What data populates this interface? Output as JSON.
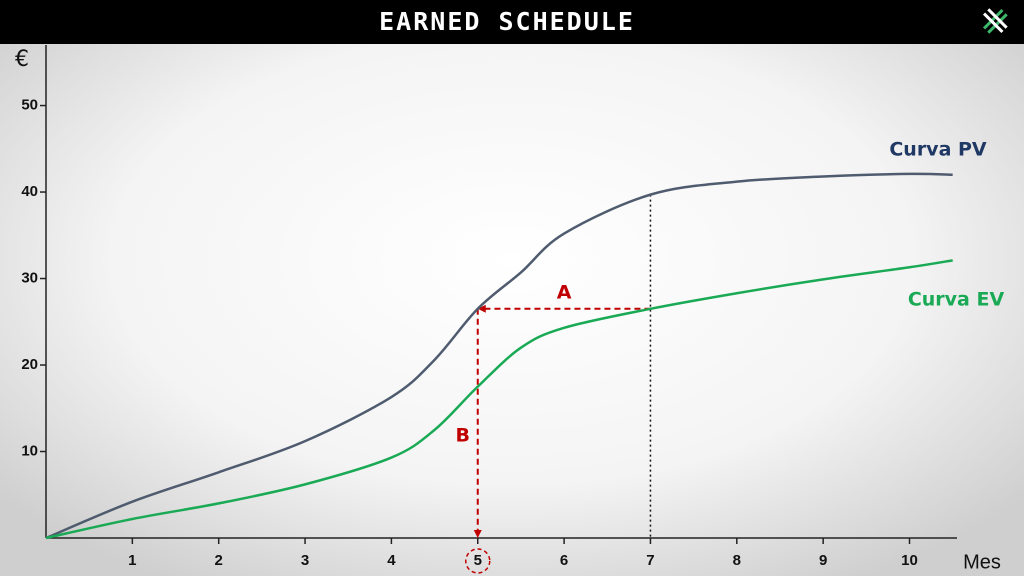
{
  "chart_data": {
    "type": "line",
    "title": "EARNED SCHEDULE",
    "x_label": "Mes",
    "y_label": "€",
    "x": [
      0,
      1,
      2,
      3,
      4,
      4.5,
      5,
      5.5,
      6,
      7,
      8,
      9,
      10,
      10.5
    ],
    "series": [
      {
        "name": "Curva PV",
        "color": "#4f5b6e",
        "label_color": "#1f3864",
        "values": [
          0,
          4.2,
          7.6,
          11.2,
          16.3,
          20.6,
          26.5,
          30.7,
          35.2,
          39.7,
          41.2,
          41.8,
          42.1,
          42.0
        ]
      },
      {
        "name": "Curva EV",
        "color": "#1aaa55",
        "label_color": "#1aaa55",
        "values": [
          0,
          2.2,
          4.0,
          6.2,
          9.3,
          12.5,
          17.5,
          22.0,
          24.3,
          26.5,
          28.3,
          29.9,
          31.3,
          32.1
        ]
      }
    ],
    "annotations": [
      "A",
      "B"
    ],
    "annotation_color": "#c00000",
    "xlim": [
      0,
      10.55
    ],
    "ylim": [
      0,
      57
    ],
    "xticks": [
      1,
      2,
      3,
      4,
      5,
      6,
      7,
      8,
      9,
      10
    ],
    "yticks": [
      10,
      20,
      30,
      40,
      50
    ],
    "grid": false
  }
}
